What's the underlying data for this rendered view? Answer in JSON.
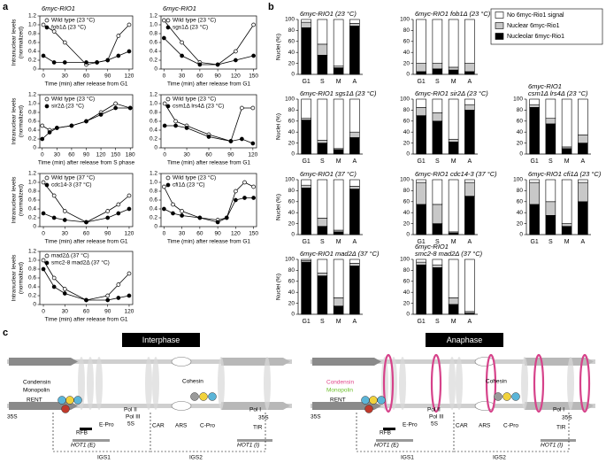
{
  "panel_labels": [
    "a",
    "b",
    "c"
  ],
  "chart_data": [
    {
      "type": "line",
      "title": "6myc-RIO1",
      "x": [
        0,
        15,
        30,
        60,
        75,
        90,
        105,
        120
      ],
      "xlim": [
        -5,
        125
      ],
      "xticks": [
        0,
        30,
        60,
        90,
        120
      ],
      "ylim": [
        0,
        1.2
      ],
      "yticks": [
        0,
        0.2,
        0.4,
        0.6,
        0.8,
        {
          "value": 1,
          "label": "1.0"
        },
        1.2
      ],
      "xlabel": "Time (min) after release from G1",
      "ylabel": [
        "Intranuclear levels",
        "(normalized)"
      ],
      "series": [
        {
          "name": "Wild type (23 °C)",
          "color": "#000000",
          "marker": "open",
          "values": [
            1.0,
            0.85,
            0.6,
            0.1,
            0.15,
            0.2,
            0.75,
            1.0
          ]
        },
        {
          "name": "fob1Δ (23 °C)",
          "color": "#000000",
          "marker": "filled",
          "values": [
            0.3,
            0.15,
            0.15,
            0.15,
            0.15,
            0.2,
            0.3,
            0.4
          ]
        }
      ]
    },
    {
      "type": "line",
      "title": "6myc-RIO1",
      "x": [
        0,
        30,
        60,
        90,
        120,
        150
      ],
      "xlim": [
        -5,
        155
      ],
      "xticks": [
        0,
        30,
        60,
        90,
        120,
        150
      ],
      "ylim": [
        0,
        1.2
      ],
      "yticks": [
        0,
        0.2,
        0.4,
        0.6,
        0.8,
        {
          "value": 1,
          "label": "1.0"
        },
        1.2
      ],
      "xlabel": "Time (min) after release from G1",
      "series": [
        {
          "name": "Wild type (23 °C)",
          "color": "#000000",
          "marker": "open",
          "values": [
            1.1,
            0.6,
            0.15,
            0.1,
            0.4,
            1.0
          ]
        },
        {
          "name": "sgs1Δ (23 °C)",
          "color": "#000000",
          "marker": "filled",
          "values": [
            0.7,
            0.3,
            0.1,
            0.1,
            0.2,
            0.3
          ]
        }
      ]
    },
    {
      "type": "line",
      "x": [
        0,
        15,
        30,
        60,
        90,
        120,
        150,
        180
      ],
      "xlim": [
        -5,
        185
      ],
      "xticks": [
        0,
        30,
        60,
        90,
        120,
        150,
        180
      ],
      "ylim": [
        0,
        1.2
      ],
      "yticks": [
        0,
        0.2,
        0.4,
        0.6,
        0.8,
        {
          "value": 1,
          "label": "1.0"
        },
        1.2
      ],
      "xlabel": "Time (min) after release from S phase",
      "ylabel": [
        "Intranuclear levels",
        "(normalized)"
      ],
      "series": [
        {
          "name": "Wild type (23 °C)",
          "color": "#000000",
          "marker": "open",
          "values": [
            0.5,
            0.4,
            0.45,
            0.5,
            0.6,
            0.8,
            1.0,
            0.9
          ]
        },
        {
          "name": "sir2Δ (23 °C)",
          "color": "#000000",
          "marker": "filled",
          "values": [
            0.2,
            0.35,
            0.45,
            0.5,
            0.6,
            0.75,
            0.9,
            0.9
          ]
        }
      ]
    },
    {
      "type": "line",
      "x": [
        0,
        15,
        30,
        60,
        90,
        105,
        120
      ],
      "xlim": [
        -5,
        125
      ],
      "xticks": [
        0,
        30,
        60,
        90,
        120
      ],
      "ylim": [
        0,
        1.2
      ],
      "yticks": [
        0,
        0.2,
        0.4,
        0.6,
        0.8,
        {
          "value": 1,
          "label": "1.0"
        },
        1.2
      ],
      "xlabel": "Time (min) after release from G1",
      "series": [
        {
          "name": "Wild type (23 °C)",
          "color": "#000000",
          "marker": "open",
          "values": [
            1.0,
            0.6,
            0.5,
            0.3,
            0.15,
            0.9,
            0.9
          ]
        },
        {
          "name": "csm1Δ lrs4Δ (23 °C)",
          "color": "#000000",
          "marker": "filled",
          "values": [
            0.5,
            0.5,
            0.45,
            0.25,
            0.15,
            0.2,
            0.1
          ]
        }
      ]
    },
    {
      "type": "line",
      "x": [
        0,
        15,
        30,
        60,
        90,
        105,
        120
      ],
      "xlim": [
        -5,
        125
      ],
      "xticks": [
        0,
        30,
        60,
        90,
        120
      ],
      "ylim": [
        0,
        1.2
      ],
      "yticks": [
        0,
        0.2,
        0.4,
        0.6,
        0.8,
        {
          "value": 1,
          "label": "1.0"
        },
        1.2
      ],
      "xlabel": "Time (min) after release from G1",
      "ylabel": [
        "Intranuclear levels",
        "(normalized)"
      ],
      "series": [
        {
          "name": "Wild type (37 °C)",
          "color": "#000000",
          "marker": "open",
          "values": [
            1.0,
            0.7,
            0.35,
            0.1,
            0.35,
            0.5,
            0.7
          ]
        },
        {
          "name": "cdc14-3 (37 °C)",
          "color": "#000000",
          "marker": "filled",
          "values": [
            0.3,
            0.2,
            0.15,
            0.1,
            0.2,
            0.3,
            0.4
          ]
        }
      ]
    },
    {
      "type": "line",
      "x": [
        0,
        15,
        30,
        60,
        90,
        105,
        120,
        135,
        150
      ],
      "xlim": [
        -5,
        155
      ],
      "xticks": [
        0,
        30,
        60,
        90,
        120,
        150
      ],
      "ylim": [
        0,
        1.2
      ],
      "yticks": [
        0,
        0.2,
        0.4,
        0.6,
        0.8,
        {
          "value": 1,
          "label": "1.0"
        },
        1.2
      ],
      "xlabel": "Time (min) after release from G1",
      "series": [
        {
          "name": "Wild type (23 °C)",
          "color": "#000000",
          "marker": "open",
          "values": [
            0.9,
            0.5,
            0.35,
            0.2,
            0.15,
            0.2,
            0.8,
            1.0,
            0.9
          ]
        },
        {
          "name": "cfi1Δ (23 °C)",
          "color": "#000000",
          "marker": "filled",
          "values": [
            0.4,
            0.3,
            0.25,
            0.2,
            0.1,
            0.2,
            0.6,
            0.65,
            0.65
          ]
        }
      ]
    },
    {
      "type": "line",
      "x": [
        0,
        15,
        30,
        60,
        90,
        105,
        120
      ],
      "xlim": [
        -5,
        125
      ],
      "xticks": [
        0,
        30,
        60,
        90,
        120
      ],
      "ylim": [
        0,
        1.2
      ],
      "yticks": [
        0,
        0.2,
        0.4,
        0.6,
        0.8,
        {
          "value": 1,
          "label": "1.0"
        },
        1.2
      ],
      "xlabel": "Time (min) after release from G1",
      "ylabel": [
        "Intranuclear levels",
        "(normalized)"
      ],
      "series": [
        {
          "name": "mad2Δ (37 °C)",
          "color": "#000000",
          "marker": "open",
          "values": [
            1.0,
            0.6,
            0.35,
            0.1,
            0.2,
            0.45,
            0.7
          ]
        },
        {
          "name": "smc2-8 mad2Δ (37 °C)",
          "color": "#000000",
          "marker": "filled",
          "values": [
            0.8,
            0.4,
            0.25,
            0.1,
            0.1,
            0.15,
            0.2
          ]
        }
      ]
    },
    {
      "type": "stacked_bar",
      "title": [
        "6myc-RIO1 (23 °C)"
      ],
      "categories": [
        "G1",
        "S",
        "M",
        "A"
      ],
      "ylim": [
        0,
        100
      ],
      "yticks": [
        0,
        20,
        40,
        60,
        80,
        100
      ],
      "ylabel": "Nuclei (%)",
      "series": [
        {
          "color": "#000000",
          "values": [
            85,
            35,
            12,
            88
          ]
        },
        {
          "color": "#c8c8c8",
          "values": [
            10,
            20,
            3,
            5
          ]
        },
        {
          "color": "#ffffff",
          "values": [
            5,
            45,
            85,
            7
          ]
        }
      ]
    },
    {
      "type": "stacked_bar",
      "title": [
        "6myc-RIO1 fob1Δ (23 °C)"
      ],
      "categories": [
        "G1",
        "S",
        "M",
        "A"
      ],
      "ylim": [
        0,
        100
      ],
      "yticks": [
        0,
        20,
        40,
        60,
        80,
        100
      ],
      "series": [
        {
          "color": "#000000",
          "values": [
            5,
            10,
            8,
            5
          ]
        },
        {
          "color": "#c8c8c8",
          "values": [
            15,
            10,
            5,
            15
          ]
        },
        {
          "color": "#ffffff",
          "values": [
            80,
            80,
            87,
            80
          ]
        }
      ]
    },
    {
      "type": "stacked_bar",
      "title": [
        "6myc-RIO1 sgs1Δ (23 °C)"
      ],
      "categories": [
        "G1",
        "S",
        "M",
        "A"
      ],
      "ylim": [
        0,
        100
      ],
      "yticks": [
        0,
        20,
        40,
        60,
        80,
        100
      ],
      "ylabel": "Nuclei (%)",
      "series": [
        {
          "color": "#000000",
          "values": [
            62,
            20,
            8,
            30
          ]
        },
        {
          "color": "#c8c8c8",
          "values": [
            3,
            5,
            2,
            10
          ]
        },
        {
          "color": "#ffffff",
          "values": [
            35,
            75,
            90,
            60
          ]
        }
      ]
    },
    {
      "type": "stacked_bar",
      "title": [
        "6myc-RIO1 sir2Δ (23 °C)"
      ],
      "categories": [
        "G1",
        "S",
        "M",
        "A"
      ],
      "ylim": [
        0,
        100
      ],
      "yticks": [
        0,
        20,
        40,
        60,
        80,
        100
      ],
      "series": [
        {
          "color": "#000000",
          "values": [
            70,
            60,
            22,
            80
          ]
        },
        {
          "color": "#c8c8c8",
          "values": [
            15,
            15,
            5,
            10
          ]
        },
        {
          "color": "#ffffff",
          "values": [
            15,
            25,
            73,
            10
          ]
        }
      ]
    },
    {
      "type": "stacked_bar",
      "title": [
        "6myc-RIO1",
        "csm1Δ lrs4Δ (23 °C)"
      ],
      "categories": [
        "G1",
        "S",
        "M",
        "A"
      ],
      "ylim": [
        0,
        100
      ],
      "yticks": [
        0,
        20,
        40,
        60,
        80,
        100
      ],
      "series": [
        {
          "color": "#000000",
          "values": [
            85,
            55,
            10,
            20
          ]
        },
        {
          "color": "#c8c8c8",
          "values": [
            5,
            10,
            3,
            15
          ]
        },
        {
          "color": "#ffffff",
          "values": [
            10,
            35,
            87,
            65
          ]
        }
      ]
    },
    {
      "type": "stacked_bar",
      "title": [
        "6myc-RIO1 (37 °C)"
      ],
      "categories": [
        "G1",
        "S",
        "M",
        "A"
      ],
      "ylim": [
        0,
        100
      ],
      "yticks": [
        0,
        20,
        40,
        60,
        80,
        100
      ],
      "ylabel": "Nuclei (%)",
      "series": [
        {
          "color": "#000000",
          "values": [
            85,
            15,
            5,
            83
          ]
        },
        {
          "color": "#c8c8c8",
          "values": [
            5,
            15,
            3,
            5
          ]
        },
        {
          "color": "#ffffff",
          "values": [
            10,
            70,
            92,
            12
          ]
        }
      ]
    },
    {
      "type": "stacked_bar",
      "title": [
        "6myc-RIO1 cdc14-3 (37 °C)"
      ],
      "categories": [
        "G1",
        "S",
        "M",
        "A"
      ],
      "ylim": [
        0,
        100
      ],
      "yticks": [
        0,
        20,
        40,
        60,
        80,
        100
      ],
      "series": [
        {
          "color": "#000000",
          "values": [
            55,
            20,
            3,
            70
          ]
        },
        {
          "color": "#c8c8c8",
          "values": [
            40,
            35,
            2,
            25
          ]
        },
        {
          "color": "#ffffff",
          "values": [
            5,
            45,
            95,
            5
          ]
        }
      ]
    },
    {
      "type": "stacked_bar",
      "title": [
        "6myc-RIO1 cfi1Δ (23 °C)"
      ],
      "categories": [
        "G1",
        "S",
        "M",
        "A"
      ],
      "ylim": [
        0,
        100
      ],
      "yticks": [
        0,
        20,
        40,
        60,
        80,
        100
      ],
      "series": [
        {
          "color": "#000000",
          "values": [
            55,
            35,
            15,
            60
          ]
        },
        {
          "color": "#c8c8c8",
          "values": [
            40,
            25,
            5,
            35
          ]
        },
        {
          "color": "#ffffff",
          "values": [
            5,
            40,
            80,
            5
          ]
        }
      ]
    },
    {
      "type": "stacked_bar",
      "title": [
        "6myc-RIO1 mad2Δ (37 °C)"
      ],
      "categories": [
        "G1",
        "S",
        "M",
        "A"
      ],
      "ylim": [
        0,
        100
      ],
      "yticks": [
        0,
        20,
        40,
        60,
        80,
        100
      ],
      "ylabel": "Nuclei (%)",
      "series": [
        {
          "color": "#000000",
          "values": [
            95,
            70,
            15,
            88
          ]
        },
        {
          "color": "#c8c8c8",
          "values": [
            3,
            5,
            15,
            5
          ]
        },
        {
          "color": "#ffffff",
          "values": [
            2,
            25,
            70,
            7
          ]
        }
      ]
    },
    {
      "type": "stacked_bar",
      "title": [
        "6myc-RIO1",
        "smc2-8 mad2Δ (37 °C)"
      ],
      "categories": [
        "G1",
        "S",
        "M",
        "A"
      ],
      "ylim": [
        0,
        100
      ],
      "yticks": [
        0,
        20,
        40,
        60,
        80,
        100
      ],
      "series": [
        {
          "color": "#000000",
          "values": [
            90,
            85,
            18,
            2
          ]
        },
        {
          "color": "#c8c8c8",
          "values": [
            5,
            5,
            12,
            3
          ]
        },
        {
          "color": "#ffffff",
          "values": [
            5,
            10,
            70,
            95
          ]
        }
      ]
    }
  ],
  "panel_b_legend": [
    {
      "name": "No 6myc-Rio1 signal",
      "color": "#ffffff"
    },
    {
      "name": "Nuclear 6myc-Rio1",
      "color": "#c8c8c8"
    },
    {
      "name": "Nucleolar 6myc-Rio1",
      "color": "#000000"
    }
  ],
  "diagram": {
    "interphase": {
      "title": "Interphase",
      "labels": [
        "Condensin",
        "Monopolin",
        "RENT",
        "35S",
        "RFB",
        "E-Pro",
        "Pol II",
        "Pol III",
        "5S",
        "CAR",
        "ARS",
        "C-Pro",
        "Cohesin",
        "Pol I",
        "35S",
        "TIR",
        "HOT1 (E)",
        "HOT1 (I)",
        "IGS1",
        "IGS2"
      ]
    },
    "anaphase": {
      "title": "Anaphase",
      "labels": [
        "Condensin",
        "Monopolin",
        "RENT",
        "35S",
        "RFB",
        "E-Pro",
        "Pol II",
        "Pol III",
        "5S",
        "CAR",
        "ARS",
        "C-Pro",
        "Cohesin",
        "Pol I",
        "35S",
        "TIR",
        "HOT1 (E)",
        "HOT1 (I)",
        "IGS1",
        "IGS2"
      ]
    }
  }
}
